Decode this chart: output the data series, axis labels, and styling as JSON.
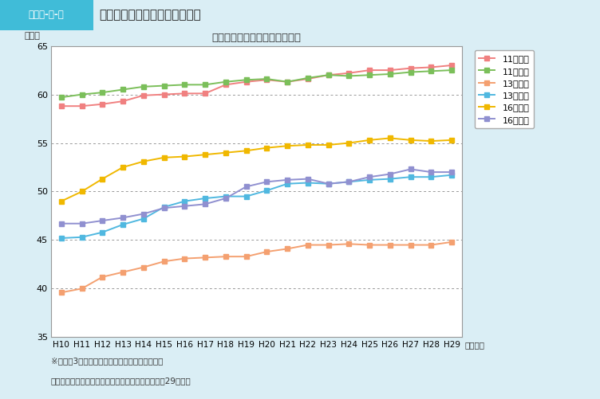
{
  "title": "新体力テスト合計点の年次推移",
  "ylabel": "（点）",
  "xlabel_suffix": "（年度）",
  "years": [
    "H10",
    "H11",
    "H12",
    "H13",
    "H14",
    "H15",
    "H16",
    "H17",
    "H18",
    "H19",
    "H20",
    "H21",
    "H22",
    "H23",
    "H24",
    "H25",
    "H26",
    "H27",
    "H28",
    "H29"
  ],
  "ylim": [
    35,
    65
  ],
  "yticks": [
    35,
    40,
    45,
    50,
    55,
    60,
    65
  ],
  "series": [
    {
      "label": "11歳男子",
      "color": "#f08080",
      "values": [
        58.8,
        58.8,
        59.0,
        59.3,
        59.9,
        60.0,
        60.1,
        60.1,
        61.0,
        61.3,
        61.5,
        61.3,
        61.6,
        62.0,
        62.2,
        62.5,
        62.5,
        62.7,
        62.8,
        63.0
      ]
    },
    {
      "label": "11歳女子",
      "color": "#7bbf5a",
      "values": [
        59.7,
        60.0,
        60.2,
        60.5,
        60.8,
        60.9,
        61.0,
        61.0,
        61.3,
        61.5,
        61.6,
        61.3,
        61.7,
        62.0,
        61.9,
        62.0,
        62.1,
        62.3,
        62.4,
        62.5
      ]
    },
    {
      "label": "13歳男子",
      "color": "#f4a070",
      "values": [
        39.6,
        40.0,
        41.2,
        41.7,
        42.2,
        42.8,
        43.1,
        43.2,
        43.3,
        43.3,
        43.8,
        44.1,
        44.5,
        44.5,
        44.6,
        44.5,
        44.5,
        44.5,
        44.5,
        44.8
      ]
    },
    {
      "label": "13歳女子",
      "color": "#50b8e0",
      "values": [
        45.2,
        45.3,
        45.8,
        46.6,
        47.2,
        48.4,
        49.0,
        49.3,
        49.5,
        49.5,
        50.1,
        50.8,
        50.9,
        50.8,
        51.0,
        51.2,
        51.3,
        51.5,
        51.5,
        51.7
      ]
    },
    {
      "label": "16歳男子",
      "color": "#f0b800",
      "values": [
        49.0,
        50.0,
        51.3,
        52.5,
        53.1,
        53.5,
        53.6,
        53.8,
        54.0,
        54.2,
        54.5,
        54.7,
        54.8,
        54.8,
        55.0,
        55.3,
        55.5,
        55.3,
        55.2,
        55.3
      ]
    },
    {
      "label": "16歳女子",
      "color": "#9090d0",
      "values": [
        46.7,
        46.7,
        47.0,
        47.3,
        47.7,
        48.3,
        48.5,
        48.7,
        49.3,
        50.5,
        51.0,
        51.2,
        51.3,
        50.8,
        51.0,
        51.5,
        51.8,
        52.3,
        52.0,
        52.0
      ]
    }
  ],
  "note1": "※図は、3点移動平均法を用いて平滑化してある",
  "note2": "（出典）スポーツ庁「体力・運動能力調査」（平成29年度）",
  "header_label": "図表２‐８‐６",
  "header_title": "新体力テスト合計点の年次推移",
  "bg_color": "#daeef5",
  "plot_bg": "#ffffff",
  "header_bg": "#40bcd8",
  "header_text_bg": "#daeef5"
}
